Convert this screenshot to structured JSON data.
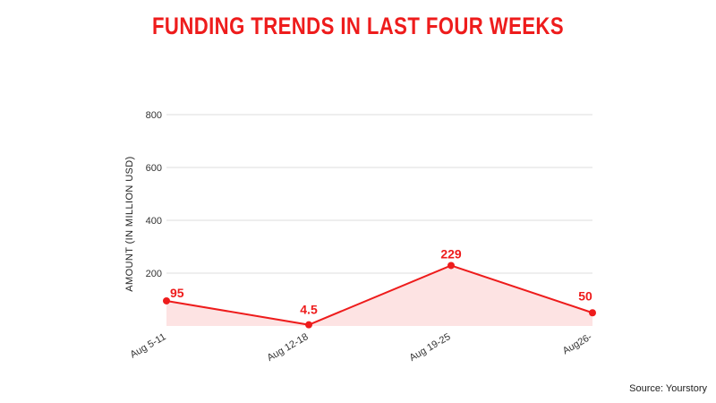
{
  "source": "Source: Yourstory",
  "colors": {
    "accent": "#ee1c1c",
    "fill": "#fde3e3",
    "grid": "#dcdcdc"
  },
  "chart_data": {
    "type": "area",
    "title": "FUNDING TRENDS IN LAST FOUR WEEKS",
    "xlabel": "",
    "ylabel": "AMOUNT (IN MILLION USD)",
    "categories": [
      "Aug 5-11",
      "Aug 12-18",
      "Aug 19-25",
      "Aug26-"
    ],
    "series": [
      {
        "values": [
          95,
          4.5,
          229,
          50
        ],
        "data_labels": [
          "95",
          "4.5",
          "229",
          "50"
        ]
      }
    ],
    "ylim": [
      0,
      800
    ],
    "yticks": [
      200,
      400,
      600,
      800
    ],
    "ytick_labels": [
      "200",
      "400",
      "600",
      "800"
    ],
    "grid": true,
    "legend": "none"
  }
}
